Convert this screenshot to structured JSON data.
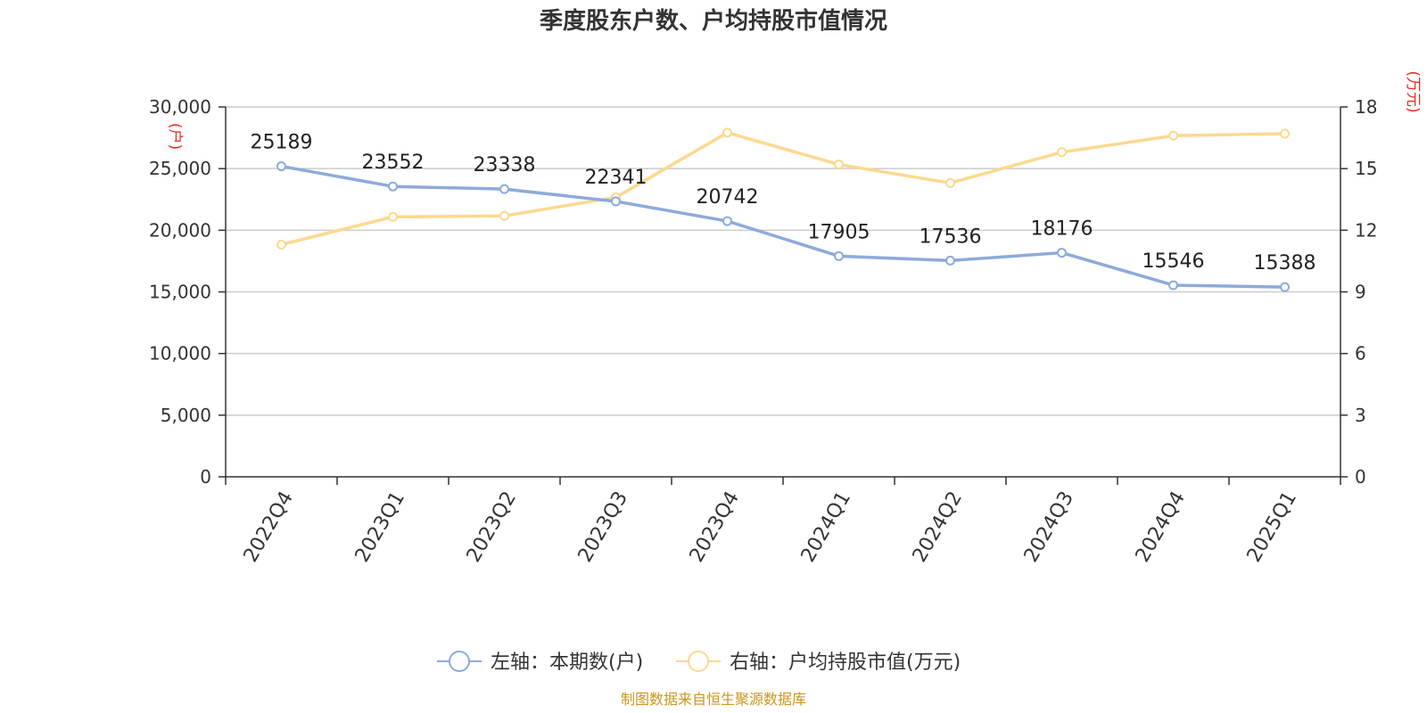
{
  "chart_data": {
    "type": "line",
    "title": "季度股东户数、户均持股市值情况",
    "categories": [
      "2022Q4",
      "2023Q1",
      "2023Q2",
      "2023Q3",
      "2023Q4",
      "2024Q1",
      "2024Q2",
      "2024Q3",
      "2024Q4",
      "2025Q1"
    ],
    "series": [
      {
        "name": "左轴：本期数(户)",
        "axis": "left",
        "color": "#8eaadb",
        "values": [
          25189,
          23552,
          23338,
          22341,
          20742,
          17905,
          17536,
          18176,
          15546,
          15388
        ],
        "data_labels": [
          "25189",
          "23552",
          "23338",
          "22341",
          "20742",
          "17905",
          "17536",
          "18176",
          "15546",
          "15388"
        ]
      },
      {
        "name": "右轴：户均持股市值(万元)",
        "axis": "right",
        "color": "#fcd98f",
        "values": [
          11.3,
          12.65,
          12.7,
          13.6,
          16.75,
          15.2,
          14.3,
          15.8,
          16.6,
          16.7
        ]
      }
    ],
    "left_axis": {
      "unit": "(户)",
      "ylim": [
        0,
        30000
      ],
      "ticks": [
        0,
        5000,
        10000,
        15000,
        20000,
        25000,
        30000
      ],
      "tick_labels": [
        "0",
        "5,000",
        "10,000",
        "15,000",
        "20,000",
        "25,000",
        "30,000"
      ]
    },
    "right_axis": {
      "unit": "(万元)",
      "ylim": [
        0,
        18
      ],
      "ticks": [
        0,
        3,
        6,
        9,
        12,
        15,
        18
      ],
      "tick_labels": [
        "0",
        "3",
        "6",
        "9",
        "12",
        "15",
        "18"
      ]
    },
    "grid": true,
    "legend_position": "bottom-center",
    "source": "制图数据来自恒生聚源数据库",
    "colors": {
      "unit_label": "#e8281f",
      "source": "#c8961e",
      "grid": "#cccccc",
      "axis": "#333333"
    }
  }
}
